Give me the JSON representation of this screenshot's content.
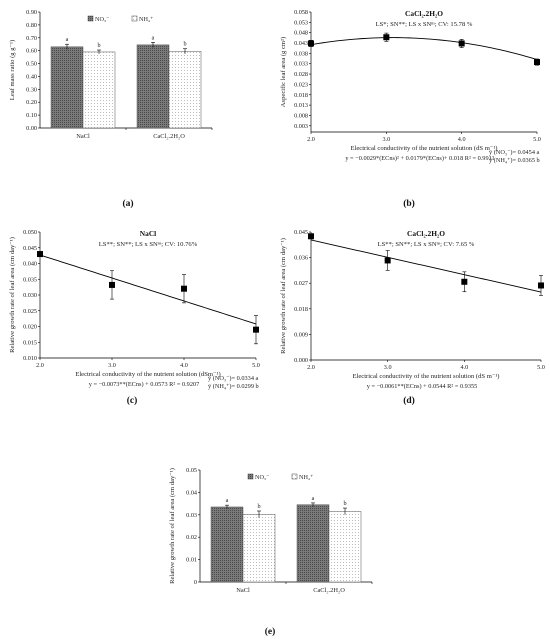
{
  "colors": {
    "no3_fill": "#6d6d6d",
    "nh4_fill": "#ffffff",
    "line": "#000000"
  },
  "chart_data": [
    {
      "id": "a",
      "type": "bar",
      "caption": "(a)",
      "ylabel": "Leaf mass ratio (g g⁻¹)",
      "ylim": [
        0,
        0.9
      ],
      "yticks": [
        "0.00",
        "0.10",
        "0.20",
        "0.30",
        "0.40",
        "0.50",
        "0.60",
        "0.70",
        "0.80",
        "0.90"
      ],
      "categories": [
        "NaCl",
        "CaCl₂.2H₂O"
      ],
      "series": [
        {
          "name": "NO₃⁻",
          "values": [
            0.63,
            0.645
          ],
          "errors": [
            0.02,
            0.02
          ],
          "letters": [
            "a",
            "a"
          ]
        },
        {
          "name": "NH₄⁺",
          "values": [
            0.59,
            0.595
          ],
          "errors": [
            0.015,
            0.02
          ],
          "letters": [
            "b",
            "b"
          ]
        }
      ]
    },
    {
      "id": "b",
      "type": "scatter",
      "caption": "(b)",
      "title": "CaCl₂.2H₂O",
      "stats": "LS*; SN**; LS x SNⁿˢ; CV: 15.78 %",
      "ylabel": "Aspecific leaf area (g cm²)",
      "xlabel": "Electrical conductivity of the nutrient solution (dS m⁻¹)",
      "xlim": [
        2,
        5
      ],
      "xticks": [
        "2.0",
        "3.0",
        "4.0",
        "5.0"
      ],
      "ylim": [
        0,
        0.058
      ],
      "yticks": [
        "0.003",
        "0.008",
        "0.013",
        "0.018",
        "0.023",
        "0.028",
        "0.033",
        "0.038",
        "0.043",
        "0.048",
        "0.053",
        "0.058"
      ],
      "x": [
        2,
        3,
        4,
        5
      ],
      "y": [
        0.0428,
        0.0458,
        0.0428,
        0.0338
      ],
      "errors": [
        0.0015,
        0.002,
        0.002,
        0.0015
      ],
      "fit": {
        "a": -0.0029,
        "b": 0.0179,
        "c": 0.018
      },
      "equation": "y = −0.0029*(ECns)² + 0.0179*(ECns)+ 0.018 R² = 0.9911",
      "means": [
        "ȳ (NO₃⁻)= 0.0454 a",
        "ȳ (NH₄⁺)= 0.0365 b"
      ]
    },
    {
      "id": "c",
      "type": "scatter",
      "caption": "(c)",
      "title": "NaCl",
      "stats": "LS**; SN**; LS x SNⁿˢ; CV: 10.76%",
      "ylabel": "Relative growth rate of leaf area (cm day⁻¹)",
      "xlabel": "Electrical conductivity of the nutrient solution (dSm⁻¹)",
      "xlim": [
        2,
        5
      ],
      "xticks": [
        "2.0",
        "3.0",
        "4.0",
        "5.0"
      ],
      "ylim": [
        0.01,
        0.05
      ],
      "yticks": [
        "0.010",
        "0.015",
        "0.020",
        "0.025",
        "0.030",
        "0.035",
        "0.040",
        "0.045",
        "0.050"
      ],
      "x": [
        2,
        3,
        4,
        5
      ],
      "y": [
        0.043,
        0.0332,
        0.032,
        0.019
      ],
      "errors": [
        0.0,
        0.0045,
        0.0045,
        0.0045
      ],
      "fit": {
        "a": 0,
        "b": -0.0073,
        "c": 0.0573
      },
      "equation": "y = −0.0073**(ECns) + 0.0573 R² = 0.9207",
      "means": [
        "ȳ (NO₃⁻)= 0.0334 a",
        "ȳ (NH₄⁺)= 0.0299 b"
      ]
    },
    {
      "id": "d",
      "type": "scatter",
      "caption": "(d)",
      "title": "CaCl₂.2H₂O",
      "stats": "LS**; SN**; LS x SNⁿˢ; CV: 7.65 %",
      "ylabel": "Relative growth rate of leaf area (cm day⁻¹)",
      "xlabel": "Electrical conductivity of the nutrient solution (dS m⁻¹)",
      "xlim": [
        2,
        5
      ],
      "xticks": [
        "2.0",
        "3.0",
        "4.0",
        "5.0"
      ],
      "ylim": [
        0,
        0.045
      ],
      "yticks": [
        "0.000",
        "0.009",
        "0.018",
        "0.027",
        "0.036",
        "0.045"
      ],
      "x": [
        2,
        3,
        4,
        5
      ],
      "y": [
        0.0435,
        0.035,
        0.0275,
        0.0262
      ],
      "errors": [
        0.0,
        0.0035,
        0.0035,
        0.0035
      ],
      "fit": {
        "a": 0,
        "b": -0.0061,
        "c": 0.0544
      },
      "equation": "y = −0.0061**(ECns) + 0.0544 R² = 0.9355",
      "means": []
    },
    {
      "id": "e",
      "type": "bar",
      "caption": "(e)",
      "ylabel": "Relative growth rate of leaf area (cm day⁻¹)",
      "ylim": [
        0,
        0.05
      ],
      "yticks": [
        "0",
        "0.01",
        "0.02",
        "0.03",
        "0.04",
        "0.05"
      ],
      "categories": [
        "NaCl",
        "CaCl₂.2H₂O"
      ],
      "series": [
        {
          "name": "NO₃⁻",
          "values": [
            0.0335,
            0.0345
          ],
          "errors": [
            0.0008,
            0.0008
          ],
          "letters": [
            "a",
            "a"
          ]
        },
        {
          "name": "NH₄⁺",
          "values": [
            0.0302,
            0.0315
          ],
          "errors": [
            0.0015,
            0.0015
          ],
          "letters": [
            "b",
            "b"
          ]
        }
      ]
    }
  ]
}
